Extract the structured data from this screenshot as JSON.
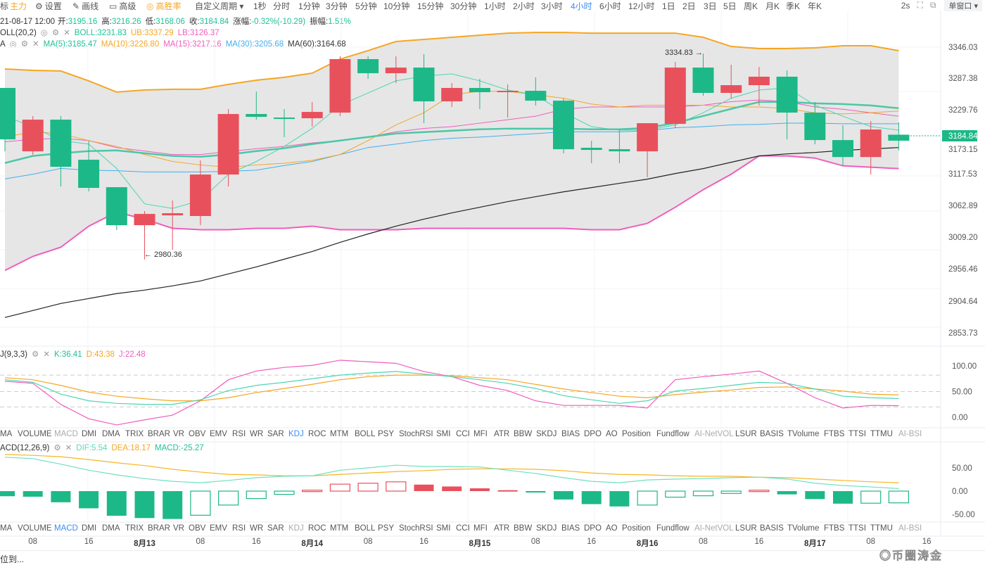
{
  "toolbar": {
    "indicator_cut": "标",
    "main": "主力",
    "settings": "设置",
    "draw": "画线",
    "advanced": "高级",
    "win_rate": "高胜率",
    "custom_period": "自定义周期 ▾",
    "periods": [
      "1秒",
      "分时",
      "1分钟",
      "3分钟",
      "5分钟",
      "10分钟",
      "15分钟",
      "30分钟",
      "1小时",
      "2小时",
      "3小时",
      "4小时",
      "6小时",
      "12小时",
      "1日",
      "2日",
      "3日",
      "5日",
      "周K",
      "月K",
      "季K",
      "年K"
    ],
    "active_period": "4小时",
    "refresh": "2s",
    "window_mode": "单窗口 ▾"
  },
  "ohlc_info": {
    "time": "21-08-17 12:00",
    "open_label": "开:",
    "open": "3195.16",
    "high_label": "高:",
    "high": "3216.26",
    "low_label": "低:",
    "low": "3168.06",
    "close_label": "收:",
    "close": "3184.84",
    "change_label": "涨幅:",
    "change": "-0.32%(-10.29)",
    "amp_label": "振幅:",
    "amp": "1.51%"
  },
  "boll_info": {
    "name": "OLL(20,2)",
    "boll": "BOLL:3231.83",
    "ub": "UB:3337.29",
    "lb": "LB:3126.37"
  },
  "ma_info": {
    "name": "A",
    "ma5": "MA(5):3185.47",
    "ma10": "MA(10):3226.80",
    "ma15": "MA(15):3217.16",
    "ma30": "MA(30):3205.68",
    "ma60": "MA(60):3164.68"
  },
  "kdj_info": {
    "name": "J(9,3,3)",
    "k": "K:36.41",
    "d": "D:43.38",
    "j": "J:22.48"
  },
  "macd_info": {
    "name": "ACD(12,26,9)",
    "dif": "DIF:5.54",
    "dea": "DEA:18.17",
    "macd": "MACD:-25.27"
  },
  "indicator_tabs": [
    "MA",
    "VOLUME",
    "MACD",
    "DMI",
    "DMA",
    "TRIX",
    "BRAR",
    "VR",
    "OBV",
    "EMV",
    "RSI",
    "WR",
    "SAR",
    "KDJ",
    "ROC",
    "MTM",
    "BOLL",
    "PSY",
    "StochRSI",
    "SMI",
    "CCI",
    "MFI",
    "ATR",
    "BBW",
    "SKDJ",
    "BIAS",
    "DPO",
    "AO",
    "Position",
    "Fundflow",
    "AI-NetVOL",
    "LSUR",
    "BASIS",
    "TVolume",
    "FTBS",
    "TTSI",
    "TTMU",
    "AI-BSI"
  ],
  "active_tab_1": "KDJ",
  "active_tab_2": "MACD",
  "price_axis": [
    "3346.03",
    "3287.38",
    "3229.76",
    "3173.15",
    "3117.53",
    "3062.89",
    "3009.20",
    "2956.46",
    "2904.64",
    "2853.73"
  ],
  "current_price": "3184.84",
  "kdj_axis": [
    "100.00",
    "50.00",
    "0.00"
  ],
  "macd_axis": [
    "50.00",
    "0.00",
    "-50.00"
  ],
  "time_axis": [
    {
      "t": "08",
      "b": false
    },
    {
      "t": "16",
      "b": false
    },
    {
      "t": "8月13",
      "b": true
    },
    {
      "t": "08",
      "b": false
    },
    {
      "t": "16",
      "b": false
    },
    {
      "t": "8月14",
      "b": true
    },
    {
      "t": "08",
      "b": false
    },
    {
      "t": "16",
      "b": false
    },
    {
      "t": "8月15",
      "b": true
    },
    {
      "t": "08",
      "b": false
    },
    {
      "t": "16",
      "b": false
    },
    {
      "t": "8月16",
      "b": true
    },
    {
      "t": "08",
      "b": false
    },
    {
      "t": "16",
      "b": false
    },
    {
      "t": "8月17",
      "b": true
    },
    {
      "t": "08",
      "b": false
    },
    {
      "t": "16",
      "b": false
    }
  ],
  "annotations": {
    "high": "3334.83 →",
    "low": "← 2980.36"
  },
  "bottom_text": "位到...",
  "watermark": "币圈涛金",
  "colors": {
    "up": "#e8515c",
    "down": "#1db887",
    "ub": "#f5a623",
    "lb": "#f05dbd",
    "mid": "#4dc7a7",
    "band": "#e6e6e6"
  },
  "chart_data": {
    "type": "candlestick",
    "price_range": [
      2853.73,
      3346.03
    ],
    "candles": [
      [
        3275.7,
        3272,
        3187.1,
        3166.5
      ],
      [
        3166.5,
        3227.2,
        3221.1,
        3160.5
      ],
      [
        3221.1,
        3227.2,
        3139.9,
        3105.9
      ],
      [
        3152,
        3185,
        3103.5,
        3097.4
      ],
      [
        3104.7,
        3081.7,
        3039.2,
        3030.8
      ],
      [
        3039.2,
        3063.5,
        3058.6,
        2980.36
      ],
      [
        3056.2,
        3081.7,
        3059.8,
        2996.8
      ],
      [
        3055,
        3150.8,
        3126.5,
        3039.2
      ],
      [
        3126.5,
        3239.3,
        3230.8,
        3105.9
      ],
      [
        3230.8,
        3269.6,
        3226,
        3221.1
      ],
      [
        3224.7,
        3239.3,
        3222.3,
        3190.8
      ],
      [
        3223.5,
        3251.4,
        3234.4,
        3209
      ],
      [
        3233.2,
        3330.3,
        3325.4,
        3227.2
      ],
      [
        3325.4,
        3330.3,
        3301.1,
        3291.4
      ],
      [
        3301.1,
        3330.3,
        3310.8,
        3284.2
      ],
      [
        3310.8,
        3333.9,
        3252.6,
        3215
      ],
      [
        3252.6,
        3284.2,
        3275.7,
        3242.9
      ],
      [
        3275.7,
        3291.4,
        3268.4,
        3239.3
      ],
      [
        3268.4,
        3281.7,
        3270.8,
        3224.7
      ],
      [
        3270.8,
        3293.9,
        3253.8,
        3245.4
      ],
      [
        3253.8,
        3257.5,
        3170.1,
        3162.9
      ],
      [
        3172.6,
        3184.7,
        3168.9,
        3145.9
      ],
      [
        3170.1,
        3202.9,
        3166.5,
        3145.9
      ],
      [
        3166.5,
        3215,
        3215,
        3121.7
      ],
      [
        3213.8,
        3320.5,
        3310.8,
        3206.6
      ],
      [
        3310.8,
        3334.83,
        3267.2,
        3262.3
      ],
      [
        3267.2,
        3315.7,
        3280.5,
        3257.5
      ],
      [
        3280.5,
        3312,
        3295.1,
        3245.4
      ],
      [
        3295.1,
        3306,
        3233.2,
        3187.1
      ],
      [
        3233.2,
        3251.4,
        3185.9,
        3178.7
      ],
      [
        3185.9,
        3211.4,
        3156.6,
        3142.3
      ],
      [
        3156.6,
        3218.7,
        3204.1,
        3126.5
      ],
      [
        3195.16,
        3216.26,
        3184.84,
        3168.06
      ]
    ],
    "ub": [
      3308.5,
      3306,
      3304.9,
      3287.9,
      3268.6,
      3272.2,
      3273.4,
      3273.4,
      3281.9,
      3289.1,
      3294,
      3301.2,
      3325.4,
      3340,
      3355.7,
      3359.3,
      3363,
      3366.6,
      3370.2,
      3371.4,
      3371.4,
      3370.2,
      3370.2,
      3370.2,
      3370.2,
      3363,
      3347.2,
      3343.6,
      3343.6,
      3344.8,
      3348.4,
      3348.4,
      3340
    ],
    "lb": [
      2961.2,
      2985.4,
      3001.2,
      3037.5,
      3061.7,
      3049.6,
      3033.8,
      3031.4,
      3031.4,
      3033.8,
      3033.8,
      3037.5,
      3031.4,
      3031.4,
      3031.4,
      3033.8,
      3033.8,
      3033.8,
      3033.8,
      3033.8,
      3033.8,
      3031.4,
      3031.4,
      3042.3,
      3070.1,
      3100.4,
      3127,
      3158.5,
      3158.5,
      3154.8,
      3141.5,
      3139.1,
      3136.7
    ],
    "mid": [
      3146.4,
      3158.5,
      3163.3,
      3166.9,
      3168.1,
      3163.3,
      3158.5,
      3157.2,
      3160.9,
      3166.9,
      3171.8,
      3179,
      3185.1,
      3191.1,
      3197.2,
      3199.6,
      3202,
      3204.4,
      3205.6,
      3205.6,
      3205.6,
      3204.4,
      3204.4,
      3206.9,
      3215.3,
      3227.4,
      3239.6,
      3251.6,
      3251.6,
      3249.2,
      3248,
      3245.6,
      3240.7
    ],
    "ma5": [
      3227,
      3209,
      3185,
      3179,
      3137,
      3076,
      3068,
      3082,
      3127,
      3149,
      3175,
      3206,
      3246,
      3267,
      3288,
      3296,
      3300,
      3288,
      3272,
      3264,
      3233,
      3209,
      3203,
      3203,
      3212,
      3233,
      3258,
      3272,
      3276,
      3246,
      3227,
      3209,
      3203
    ],
    "ma10": [
      3191,
      3200,
      3197,
      3185,
      3175,
      3161,
      3149,
      3143,
      3139,
      3143,
      3146,
      3151,
      3161,
      3185,
      3212,
      3233,
      3264,
      3270,
      3270,
      3264,
      3258,
      3248,
      3243,
      3246,
      3246,
      3246,
      3243,
      3243,
      3240,
      3233,
      3231,
      3233,
      3236
    ],
    "ma15": [
      3183,
      3187,
      3189,
      3185,
      3173,
      3167,
      3161,
      3161,
      3166,
      3171,
      3175,
      3181,
      3185,
      3191,
      3200,
      3206,
      3209,
      3215,
      3221,
      3227,
      3239,
      3243,
      3243,
      3243,
      3243,
      3246,
      3252,
      3255,
      3252,
      3243,
      3239,
      3233,
      3227
    ],
    "ma30": [
      3119,
      3127,
      3137,
      3134,
      3133,
      3131,
      3131,
      3131,
      3132,
      3134,
      3142,
      3149,
      3161,
      3173,
      3179,
      3185,
      3189,
      3191,
      3194,
      3197,
      3200,
      3200,
      3200,
      3202,
      3207,
      3209,
      3212,
      3213,
      3215,
      3215,
      3214,
      3214,
      3214
    ],
    "ma60": [
      2880.2,
      2892.2,
      2904.3,
      2912.8,
      2921.3,
      2927.3,
      2934.6,
      2943.1,
      2955.2,
      2967.3,
      2980.6,
      2993.9,
      3009.6,
      3024.1,
      3037.5,
      3049.6,
      3060.4,
      3070.1,
      3079.8,
      3088.3,
      3096.7,
      3104,
      3111.3,
      3118.5,
      3128.2,
      3136.7,
      3147.6,
      3158.5,
      3162.1,
      3164.5,
      3168.1,
      3170.6,
      3173
    ],
    "kdj": {
      "k": [
        73,
        68,
        45,
        32,
        27,
        25,
        25,
        34,
        52,
        62,
        68,
        75,
        82,
        86,
        89,
        84,
        79,
        73,
        66,
        56,
        42,
        34,
        27,
        32,
        51,
        56,
        62,
        68,
        66,
        55,
        41,
        38,
        36.41
      ],
      "d": [
        77,
        73,
        62,
        49,
        41,
        36,
        32,
        32,
        38,
        48,
        56,
        64,
        73,
        79,
        82,
        82,
        81,
        77,
        73,
        64,
        55,
        48,
        41,
        38,
        44,
        49,
        53,
        58,
        59,
        55,
        51,
        45,
        43.38
      ],
      "j": [
        70,
        66,
        25,
        -3,
        -15,
        -5,
        4,
        32,
        73,
        90,
        97,
        101,
        111,
        108,
        105,
        89,
        79,
        62,
        52,
        32,
        23,
        23,
        23,
        18,
        73,
        79,
        84,
        90,
        66,
        38,
        18,
        23,
        22.48
      ]
    },
    "macd": {
      "dif": [
        73,
        70,
        58,
        45,
        35,
        27,
        21,
        18,
        23,
        29,
        32,
        33,
        45,
        50,
        56,
        53,
        53,
        52,
        45,
        38,
        29,
        21,
        18,
        24,
        26,
        27,
        29,
        30,
        26,
        17,
        12,
        9,
        5.54
      ],
      "dea": [
        79,
        77,
        74,
        68,
        61,
        55,
        47,
        41,
        36,
        35,
        33,
        33,
        36,
        39,
        42,
        44,
        47,
        48,
        48,
        47,
        44,
        39,
        36,
        35,
        33,
        32,
        32,
        30,
        29,
        26,
        23,
        20,
        18.17
      ],
      "hist": [
        -11,
        -12,
        -24,
        -37,
        -53,
        -58,
        -60,
        -52,
        -30,
        -16,
        -7,
        2,
        15,
        17,
        20,
        14,
        10,
        6,
        2,
        -2,
        -18,
        -28,
        -33,
        -30,
        -13,
        -10,
        -5,
        2,
        -7,
        -17,
        -27,
        -26,
        -25.27
      ]
    }
  }
}
